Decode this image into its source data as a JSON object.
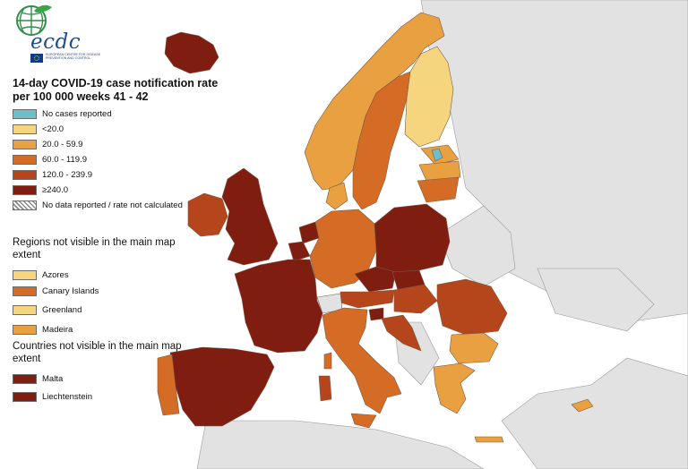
{
  "map": {
    "title": "14-day COVID-19 case notification rate per 100 000 weeks 41 - 42",
    "logo": {
      "wordmark": "ecdc",
      "subtitle": "European Centre for Disease Prevention and Control",
      "icon": "globe-icon"
    },
    "colors": {
      "sea": "#ffffff",
      "non_eu_land": "#e2e2e2",
      "border": "#7a5a48",
      "no_cases": "#6fbfc9",
      "lt20": "#f5d57e",
      "r20_60": "#e8a040",
      "r60_120": "#d46c25",
      "r120_240": "#b5451b",
      "ge240": "#7e1d10"
    },
    "legend": {
      "items": [
        {
          "label": "No cases reported",
          "color": "#6fbfc9"
        },
        {
          "label": "<20.0",
          "color": "#f5d57e"
        },
        {
          "label": "20.0 - 59.9",
          "color": "#e8a040"
        },
        {
          "label": "60.0 - 119.9",
          "color": "#d46c25"
        },
        {
          "label": "120.0 - 239.9",
          "color": "#b5451b"
        },
        {
          "label": "≥240.0",
          "color": "#7e1d10"
        },
        {
          "label": "No data reported / rate not calculated",
          "color": "hatch"
        }
      ]
    },
    "regions_not_visible": {
      "title": "Regions not visible in the main map extent",
      "items": [
        {
          "label": "Azores",
          "color": "#f5d57e"
        },
        {
          "label": "Canary Islands",
          "color": "#d46c25"
        },
        {
          "label": "Greenland",
          "color": "#f5d57e"
        },
        {
          "label": "Madeira",
          "color": "#e8a040"
        }
      ]
    },
    "countries_not_visible": {
      "title": "Countries not visible in the main map extent",
      "items": [
        {
          "label": "Malta",
          "color": "#7e1d10"
        },
        {
          "label": "Liechtenstein",
          "color": "#7e1d10"
        }
      ]
    }
  }
}
